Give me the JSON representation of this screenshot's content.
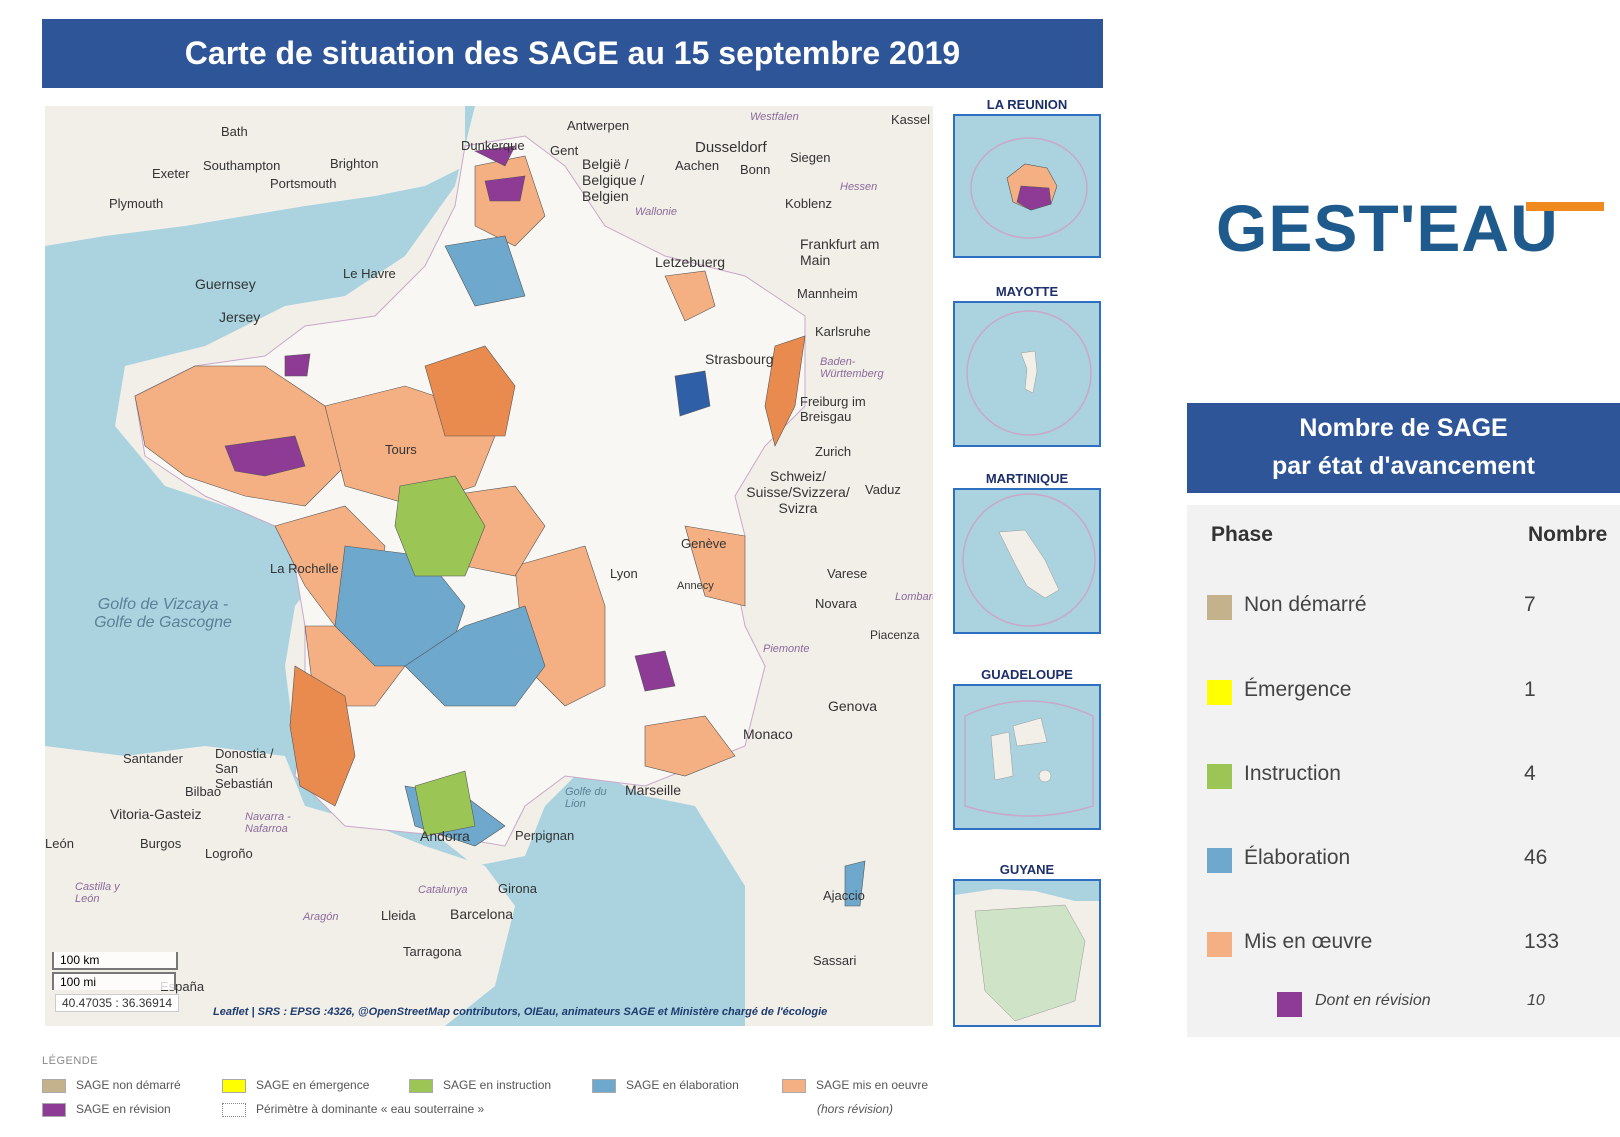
{
  "title": "Carte de situation des SAGE au 15 septembre 2019",
  "colors": {
    "header_blue": "#2e5597",
    "non_demarre": "#c4b28c",
    "emergence": "#ffff00",
    "instruction": "#9bc655",
    "elaboration": "#6fa8cd",
    "mis_en_oeuvre": "#f4b083",
    "revision": "#8e3b96",
    "water": "#aad3df",
    "land": "#f2efe9"
  },
  "map": {
    "places": [
      "Bath",
      "Antwerpen",
      "Kassel",
      "Exeter",
      "Southampton",
      "Brighton",
      "Portsmouth",
      "Plymouth",
      "Dunkerque",
      "Gent",
      "België / Belgique / Belgien",
      "Dusseldorf",
      "Aachen",
      "Bonn",
      "Siegen",
      "Koblenz",
      "Frankfurt am Main",
      "Letzebuerg",
      "Mannheim",
      "Guernsey",
      "Jersey",
      "Le Havre",
      "Karlsruhe",
      "Strasbourg",
      "Freiburg im Breisgau",
      "Zurich",
      "Schweiz/ Suisse/Svizzera/ Svizra",
      "Vaduz",
      "Lyon",
      "Annecy",
      "Genève",
      "Varese",
      "Novara",
      "Piacenza",
      "Genova",
      "Monaco",
      "Marseille",
      "Santander",
      "Donostia / San Sebastián",
      "Bilbao",
      "Vitoria-Gasteiz",
      "Burgos",
      "Logroño",
      "León",
      "Lleida",
      "Barcelona",
      "Girona",
      "Tarragona",
      "Perpignan",
      "Andorra",
      "Ajaccio",
      "Sassari",
      "La Rochelle",
      "Tours",
      "España"
    ],
    "seas": [
      "Golfo de Vizcaya - Golfe de Gascogne",
      "Golfe du Lion"
    ],
    "regions": [
      "Hessen",
      "Westfalen",
      "Wallonie",
      "Baden-Württemberg",
      "Navarra - Nafarroa",
      "Castilla y León",
      "Aragón",
      "Catalunya",
      "Piemonte",
      "Lombardia"
    ],
    "scale_km": "100 km",
    "scale_mi": "100 mi",
    "coords": "40.47035 : 36.36914",
    "attribution": "Leaflet | SRS : EPSG :4326, @OpenStreetMap contributors, OIEau, animateurs SAGE et Ministère chargé de l'écologie"
  },
  "insets": [
    "LA REUNION",
    "MAYOTTE",
    "MARTINIQUE",
    "GUADELOUPE",
    "GUYANE"
  ],
  "logo": {
    "text": "GEST'EAU"
  },
  "table": {
    "heading_line1": "Nombre de SAGE",
    "heading_line2": "par état d'avancement",
    "col_phase": "Phase",
    "col_count": "Nombre",
    "rows": [
      {
        "label": "Non démarré",
        "count": "7"
      },
      {
        "label": "Émergence",
        "count": "1"
      },
      {
        "label": "Instruction",
        "count": "4"
      },
      {
        "label": "Élaboration",
        "count": "46"
      },
      {
        "label": "Mis en œuvre",
        "count": "133"
      }
    ],
    "sub_row": {
      "label": "Dont en révision",
      "count": "10"
    }
  },
  "legend": {
    "title": "LÉGENDE",
    "items": [
      "SAGE non démarré",
      "SAGE en révision",
      "SAGE en émergence",
      "Périmètre à dominante « eau souterraine »",
      "SAGE en instruction",
      "SAGE en élaboration",
      "SAGE mis en oeuvre",
      "(hors révision)"
    ]
  }
}
